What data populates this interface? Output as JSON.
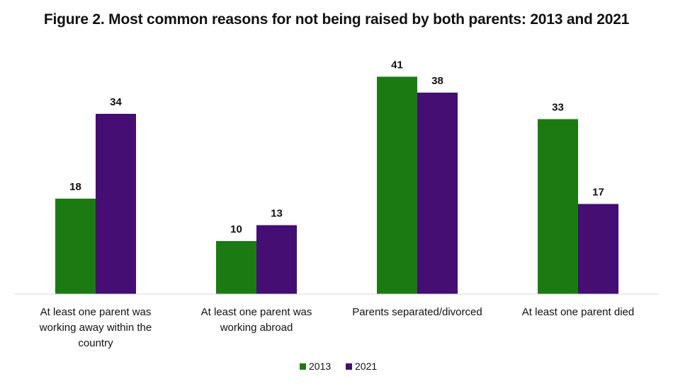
{
  "chart_data": {
    "type": "bar",
    "title": "Figure 2. Most common reasons for not being raised by both parents: 2013 and 2021",
    "categories": [
      [
        "At least one parent was",
        "working away within the",
        "country"
      ],
      [
        "At least one parent was",
        "working abroad"
      ],
      [
        "Parents separated/divorced"
      ],
      [
        "At least one parent died"
      ]
    ],
    "series": [
      {
        "name": "2013",
        "color": "#1b7a12",
        "values": [
          18,
          10,
          41,
          33
        ]
      },
      {
        "name": "2021",
        "color": "#440e73",
        "values": [
          34,
          13,
          38,
          17
        ]
      }
    ],
    "ylim": [
      0,
      45
    ],
    "legend": "bottom-center",
    "grid": false
  }
}
